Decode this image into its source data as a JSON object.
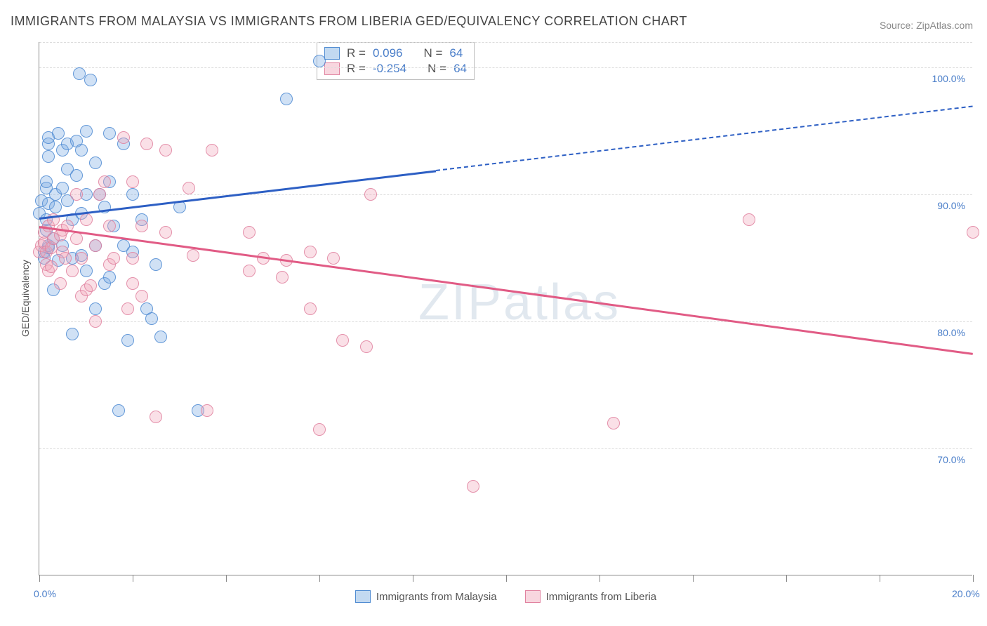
{
  "title": "IMMIGRANTS FROM MALAYSIA VS IMMIGRANTS FROM LIBERIA GED/EQUIVALENCY CORRELATION CHART",
  "source": "Source: ZipAtlas.com",
  "watermark": "ZIPatlas",
  "y_axis_title": "GED/Equivalency",
  "chart": {
    "type": "scatter",
    "xlim": [
      0,
      20
    ],
    "ylim": [
      60,
      102
    ],
    "x_ticks": [
      0,
      2,
      4,
      6,
      8,
      10,
      12,
      14,
      16,
      18,
      20
    ],
    "x_tick_labels": {
      "0": "0.0%",
      "20": "20.0%"
    },
    "y_gridlines": [
      70,
      80,
      90,
      100,
      102
    ],
    "y_tick_labels": {
      "70": "70.0%",
      "80": "80.0%",
      "90": "90.0%",
      "100": "100.0%"
    },
    "background_color": "#ffffff",
    "grid_color": "#dddddd",
    "axis_color": "#888888",
    "label_color": "#4a7ec9"
  },
  "series": {
    "malaysia": {
      "label": "Immigrants from Malaysia",
      "point_fill": "rgba(120,170,225,0.35)",
      "point_stroke": "rgba(80,140,210,0.85)",
      "line_color": "#2d5fc4",
      "R": "0.096",
      "N": "64",
      "trend": {
        "x1": 0,
        "y1": 88.2,
        "x2": 20,
        "y2": 97.0,
        "solid_until_x": 8.5
      },
      "points": [
        [
          0.0,
          88.5
        ],
        [
          0.05,
          89.5
        ],
        [
          0.1,
          85.0
        ],
        [
          0.1,
          85.5
        ],
        [
          0.15,
          87.2
        ],
        [
          0.15,
          88.0
        ],
        [
          0.15,
          90.5
        ],
        [
          0.15,
          91.0
        ],
        [
          0.2,
          85.8
        ],
        [
          0.2,
          86.0
        ],
        [
          0.2,
          89.3
        ],
        [
          0.2,
          93.0
        ],
        [
          0.2,
          94.0
        ],
        [
          0.2,
          94.5
        ],
        [
          0.3,
          82.5
        ],
        [
          0.3,
          86.5
        ],
        [
          0.35,
          89.0
        ],
        [
          0.35,
          90.0
        ],
        [
          0.4,
          84.8
        ],
        [
          0.4,
          94.8
        ],
        [
          0.5,
          86.0
        ],
        [
          0.5,
          90.5
        ],
        [
          0.5,
          93.5
        ],
        [
          0.6,
          89.5
        ],
        [
          0.6,
          92.0
        ],
        [
          0.6,
          94.0
        ],
        [
          0.7,
          79.0
        ],
        [
          0.7,
          85.0
        ],
        [
          0.7,
          88.0
        ],
        [
          0.8,
          91.5
        ],
        [
          0.8,
          94.2
        ],
        [
          0.85,
          99.5
        ],
        [
          0.9,
          85.2
        ],
        [
          0.9,
          88.5
        ],
        [
          0.9,
          93.5
        ],
        [
          1.0,
          84.0
        ],
        [
          1.0,
          90.0
        ],
        [
          1.0,
          95.0
        ],
        [
          1.1,
          99.0
        ],
        [
          1.2,
          81.0
        ],
        [
          1.2,
          86.0
        ],
        [
          1.2,
          92.5
        ],
        [
          1.3,
          90.0
        ],
        [
          1.4,
          83.0
        ],
        [
          1.4,
          89.0
        ],
        [
          1.5,
          83.5
        ],
        [
          1.5,
          91.0
        ],
        [
          1.5,
          94.8
        ],
        [
          1.6,
          87.5
        ],
        [
          1.7,
          73.0
        ],
        [
          1.8,
          86.0
        ],
        [
          1.8,
          94.0
        ],
        [
          1.9,
          78.5
        ],
        [
          2.0,
          85.5
        ],
        [
          2.0,
          90.0
        ],
        [
          2.2,
          88.0
        ],
        [
          2.3,
          81.0
        ],
        [
          2.4,
          80.2
        ],
        [
          2.5,
          84.5
        ],
        [
          2.6,
          78.8
        ],
        [
          3.0,
          89.0
        ],
        [
          3.4,
          73.0
        ],
        [
          5.3,
          97.5
        ],
        [
          6.0,
          100.5
        ]
      ]
    },
    "liberia": {
      "label": "Immigrants from Liberia",
      "point_fill": "rgba(240,165,185,0.35)",
      "point_stroke": "rgba(225,130,160,0.85)",
      "line_color": "#e15b85",
      "R": "-0.254",
      "N": "64",
      "trend": {
        "x1": 0,
        "y1": 87.5,
        "x2": 20,
        "y2": 77.5,
        "solid_until_x": 20
      },
      "points": [
        [
          0.0,
          85.5
        ],
        [
          0.05,
          86.0
        ],
        [
          0.1,
          86.2
        ],
        [
          0.1,
          87.0
        ],
        [
          0.15,
          84.5
        ],
        [
          0.15,
          85.5
        ],
        [
          0.2,
          84.0
        ],
        [
          0.2,
          87.5
        ],
        [
          0.25,
          84.3
        ],
        [
          0.25,
          85.8
        ],
        [
          0.3,
          86.5
        ],
        [
          0.3,
          88.0
        ],
        [
          0.45,
          83.0
        ],
        [
          0.45,
          86.8
        ],
        [
          0.5,
          85.5
        ],
        [
          0.5,
          87.2
        ],
        [
          0.55,
          85.0
        ],
        [
          0.6,
          87.5
        ],
        [
          0.7,
          84.0
        ],
        [
          0.8,
          86.5
        ],
        [
          0.8,
          90.0
        ],
        [
          0.9,
          82.0
        ],
        [
          0.9,
          85.0
        ],
        [
          1.0,
          82.5
        ],
        [
          1.0,
          88.0
        ],
        [
          1.1,
          82.8
        ],
        [
          1.2,
          80.0
        ],
        [
          1.2,
          86.0
        ],
        [
          1.3,
          90.0
        ],
        [
          1.4,
          91.0
        ],
        [
          1.5,
          84.5
        ],
        [
          1.5,
          87.5
        ],
        [
          1.6,
          85.0
        ],
        [
          1.8,
          94.5
        ],
        [
          1.9,
          81.0
        ],
        [
          2.0,
          83.0
        ],
        [
          2.0,
          85.0
        ],
        [
          2.0,
          91.0
        ],
        [
          2.2,
          82.0
        ],
        [
          2.2,
          87.5
        ],
        [
          2.3,
          94.0
        ],
        [
          2.5,
          72.5
        ],
        [
          2.7,
          87.0
        ],
        [
          2.7,
          93.5
        ],
        [
          3.2,
          90.5
        ],
        [
          3.3,
          85.2
        ],
        [
          3.6,
          73.0
        ],
        [
          3.7,
          93.5
        ],
        [
          4.5,
          84.0
        ],
        [
          4.5,
          87.0
        ],
        [
          4.8,
          85.0
        ],
        [
          5.2,
          83.5
        ],
        [
          5.3,
          84.8
        ],
        [
          5.8,
          81.0
        ],
        [
          5.8,
          85.5
        ],
        [
          6.0,
          71.5
        ],
        [
          6.3,
          85.0
        ],
        [
          6.5,
          78.5
        ],
        [
          7.0,
          78.0
        ],
        [
          7.1,
          90.0
        ],
        [
          9.3,
          67.0
        ],
        [
          12.3,
          72.0
        ],
        [
          15.2,
          88.0
        ],
        [
          20.0,
          87.0
        ]
      ]
    }
  },
  "stat_legend": {
    "r_label": "R =",
    "n_label": "N ="
  }
}
